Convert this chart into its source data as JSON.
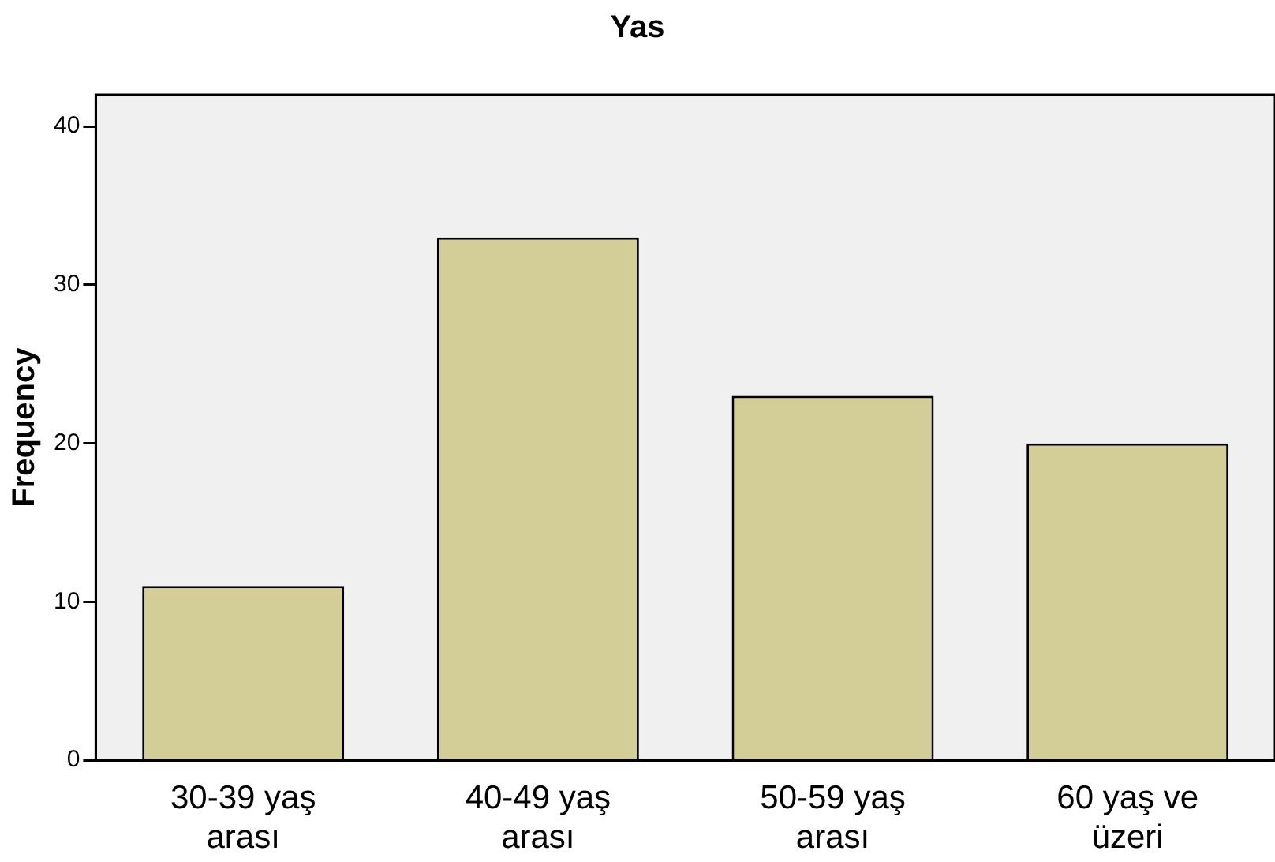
{
  "chart_data": {
    "type": "bar",
    "title": "Yas",
    "ylabel": "Frequency",
    "categories": [
      "30-39 yaş arası",
      "40-49 yaş arası",
      "50-59 yaş arası",
      "60 yaş ve üzeri"
    ],
    "values": [
      11,
      33,
      23,
      20
    ],
    "color": "#d3ce97",
    "ylim": [
      0,
      42
    ],
    "yticks": [
      0,
      10,
      20,
      30,
      40
    ],
    "grid": false,
    "legend": false
  }
}
